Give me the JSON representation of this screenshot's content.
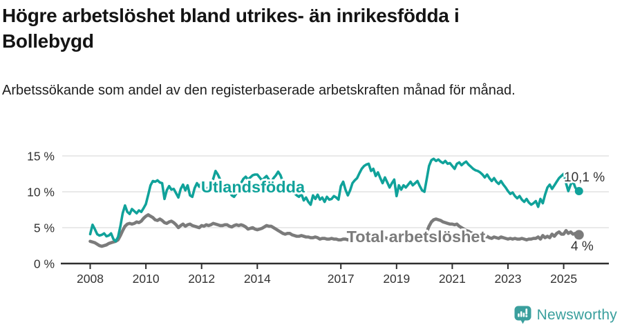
{
  "header": {
    "title": "Högre arbetslöshet bland utrikes- än inrikesfödda i Bollebygd",
    "subtitle": "Arbetssökande som andel av den registerbaserade arbetskraften månad för månad."
  },
  "chart_data": {
    "type": "line",
    "title": "Högre arbetslöshet bland utrikes- än inrikesfödda i Bollebygd",
    "unit": "%",
    "x_start": "2008-01",
    "x_step": "1 month",
    "x_tick_years": [
      2008,
      2010,
      2012,
      2014,
      2017,
      2019,
      2021,
      2023,
      2025
    ],
    "x_tick_labels": [
      "2008",
      "2010",
      "2012",
      "2014",
      "2017",
      "2019",
      "2021",
      "2023",
      "2025"
    ],
    "y_ticks": [
      0,
      5,
      10,
      15
    ],
    "y_tick_labels": [
      "0 %",
      "5 %",
      "10 %",
      "15 %"
    ],
    "ylim": [
      0,
      15.8
    ],
    "grid": "horizontal",
    "legend_position": "inline-labels",
    "colors": {
      "utlandsfodda": "#10a29a",
      "total": "#7b7b7b",
      "gridline": "#dcdcdc",
      "axis": "#2e2e2e",
      "tick_text": "#333333"
    },
    "series": [
      {
        "name": "Utlandsfödda",
        "color": "#10a29a",
        "end_label": "10,1 %",
        "end_value": 10.1,
        "values": [
          4.1,
          5.4,
          4.8,
          4.1,
          3.9,
          4.0,
          4.2,
          3.8,
          3.9,
          4.2,
          3.4,
          3.1,
          3.7,
          5.2,
          7.0,
          8.1,
          7.2,
          6.9,
          7.6,
          7.3,
          7.0,
          7.4,
          7.2,
          7.7,
          8.3,
          9.6,
          10.9,
          11.5,
          11.4,
          11.6,
          11.3,
          11.2,
          9.0,
          10.2,
          10.8,
          10.3,
          10.4,
          9.8,
          9.2,
          10.4,
          11.0,
          10.2,
          10.9,
          9.5,
          9.3,
          10.5,
          11.2,
          10.7,
          11.3,
          10.6,
          10.2,
          10.7,
          10.4,
          11.8,
          12.9,
          12.4,
          11.7,
          11.1,
          10.7,
          10.4,
          10.1,
          9.5,
          9.3,
          9.8,
          10.5,
          11.2,
          11.8,
          12.1,
          11.7,
          12.0,
          12.3,
          12.4,
          12.4,
          12.0,
          11.6,
          11.9,
          12.2,
          11.7,
          11.3,
          11.9,
          12.3,
          12.8,
          12.3,
          11.4,
          10.8,
          10.2,
          9.9,
          10.3,
          9.8,
          9.5,
          9.3,
          9.7,
          8.8,
          9.2,
          8.6,
          8.2,
          9.5,
          9.0,
          9.6,
          8.9,
          9.2,
          8.6,
          9.3,
          8.9,
          9.0,
          9.4,
          9.2,
          8.9,
          10.8,
          11.4,
          10.3,
          9.5,
          10.2,
          11.2,
          11.6,
          11.9,
          12.6,
          13.2,
          13.6,
          13.8,
          13.9,
          12.9,
          13.2,
          12.2,
          12.7,
          11.9,
          11.2,
          12.0,
          11.3,
          10.6,
          11.2,
          11.7,
          9.4,
          10.9,
          10.3,
          10.9,
          10.6,
          11.0,
          11.4,
          10.9,
          11.2,
          11.5,
          10.8,
          10.2,
          10.0,
          11.8,
          13.6,
          14.4,
          14.6,
          14.3,
          14.5,
          14.2,
          14.0,
          14.3,
          13.9,
          14.0,
          13.6,
          13.2,
          13.9,
          14.1,
          13.7,
          14.0,
          14.2,
          13.8,
          13.5,
          13.2,
          13.0,
          12.9,
          12.7,
          12.4,
          12.0,
          12.4,
          11.9,
          11.5,
          11.9,
          11.4,
          11.1,
          11.5,
          11.0,
          10.6,
          10.1,
          9.7,
          9.9,
          9.4,
          9.1,
          9.4,
          8.9,
          8.6,
          9.0,
          8.5,
          8.2,
          8.4,
          8.7,
          7.9,
          9.0,
          8.4,
          9.6,
          10.6,
          11.0,
          10.4,
          10.9,
          11.4,
          11.9,
          12.2,
          12.5,
          11.2,
          10.1,
          11.0,
          11.5,
          10.6,
          10.1
        ]
      },
      {
        "name": "Total arbetslöshet",
        "color": "#7b7b7b",
        "end_label": "4 %",
        "end_value": 4.0,
        "values": [
          3.1,
          3.0,
          2.9,
          2.7,
          2.5,
          2.4,
          2.5,
          2.6,
          2.8,
          2.9,
          3.0,
          3.1,
          3.3,
          3.9,
          4.6,
          5.2,
          5.5,
          5.6,
          5.5,
          5.6,
          5.8,
          5.7,
          5.9,
          6.3,
          6.6,
          6.8,
          6.6,
          6.4,
          6.1,
          6.0,
          6.2,
          6.0,
          5.7,
          5.6,
          5.8,
          5.9,
          5.7,
          5.4,
          5.0,
          5.3,
          5.5,
          5.2,
          5.4,
          5.5,
          5.3,
          5.2,
          5.1,
          5.0,
          5.3,
          5.2,
          5.4,
          5.3,
          5.4,
          5.6,
          5.5,
          5.4,
          5.3,
          5.3,
          5.4,
          5.4,
          5.2,
          5.1,
          5.3,
          5.4,
          5.3,
          5.4,
          5.3,
          5.1,
          4.8,
          4.9,
          5.0,
          4.8,
          4.7,
          4.8,
          4.9,
          5.1,
          5.3,
          5.2,
          5.2,
          5.0,
          4.8,
          4.6,
          4.4,
          4.2,
          4.1,
          4.2,
          4.2,
          4.0,
          3.9,
          3.8,
          3.8,
          3.9,
          3.8,
          3.7,
          3.7,
          3.6,
          3.6,
          3.7,
          3.6,
          3.4,
          3.5,
          3.5,
          3.4,
          3.4,
          3.5,
          3.4,
          3.4,
          3.3,
          3.3,
          3.4,
          3.4,
          3.3,
          3.4,
          3.5,
          3.4,
          3.5,
          3.5,
          3.6,
          3.5,
          3.6,
          3.5,
          3.6,
          3.6,
          3.5,
          3.6,
          3.6,
          3.5,
          3.6,
          3.5,
          3.6,
          3.6,
          3.5,
          3.5,
          3.6,
          3.5,
          3.6,
          3.6,
          3.7,
          3.6,
          3.6,
          3.5,
          3.6,
          3.7,
          3.8,
          4.0,
          4.4,
          5.2,
          5.8,
          6.1,
          6.2,
          6.1,
          6.0,
          5.8,
          5.7,
          5.6,
          5.5,
          5.5,
          5.4,
          5.5,
          5.2,
          5.0,
          4.8,
          4.6,
          4.5,
          4.3,
          4.2,
          4.1,
          4.0,
          3.9,
          3.8,
          3.7,
          3.8,
          3.6,
          3.5,
          3.7,
          3.6,
          3.5,
          3.7,
          3.6,
          3.5,
          3.4,
          3.5,
          3.4,
          3.5,
          3.4,
          3.4,
          3.5,
          3.4,
          3.3,
          3.4,
          3.4,
          3.5,
          3.5,
          3.7,
          3.4,
          3.9,
          3.6,
          3.8,
          3.6,
          4.1,
          3.8,
          4.2,
          4.4,
          4.1,
          4.1,
          4.6,
          4.2,
          4.4,
          4.1,
          4.2,
          4.0
        ]
      }
    ]
  },
  "footer": {
    "brand": "Newsworthy",
    "brand_color": "#3a9f9d"
  }
}
